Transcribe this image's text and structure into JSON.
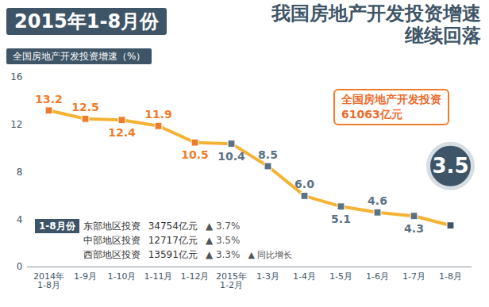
{
  "chart_data": {
    "type": "line",
    "period_label": "2015年1-8月份",
    "title": "我国房地产开发投资增速继续回落",
    "y_label": "全国房地产开发投资增速（%）",
    "categories": [
      "2014年\n1-8月",
      "1-9月",
      "1-10月",
      "1-11月",
      "1-12月",
      "2015年\n1-2月",
      "1-3月",
      "1-4月",
      "1-5月",
      "1-6月",
      "1-7月",
      "1-8月"
    ],
    "values": [
      13.2,
      12.5,
      12.4,
      11.9,
      10.5,
      10.4,
      8.5,
      6.0,
      5.1,
      4.6,
      4.3,
      3.5
    ],
    "value_labels": [
      "13.2",
      "12.5",
      "12.4",
      "11.9",
      "10.5",
      "10.4",
      "8.5",
      "6.0",
      "5.1",
      "4.6",
      "4.3",
      "3.5"
    ],
    "color": "#f5b335",
    "colors": [
      "#f07c2a",
      "#f07c2a",
      "#f07c2a",
      "#f07c2a",
      "#f07c2a",
      "#5b7184",
      "#5b7184",
      "#5b7184",
      "#5b7184",
      "#5b7184",
      "#5b7184",
      "#3e5567"
    ],
    "marker": "square",
    "data_labels": true,
    "grid": false,
    "ylim": [
      0,
      16
    ],
    "yticks": [
      0,
      4,
      8,
      12,
      16
    ],
    "annotation": {
      "label": "全国房地产开发投资",
      "value_label": "61063亿元"
    },
    "regions": {
      "period": "1-8月份",
      "rows": [
        {
          "name": "东部地区投资",
          "investment": "34754亿元",
          "growth": "▲ 3.7%"
        },
        {
          "name": "中部地区投资",
          "investment": "12717亿元",
          "growth": "▲ 3.5%"
        },
        {
          "name": "西部地区投资",
          "investment": "13591亿元",
          "growth": "▲ 3.3%"
        }
      ],
      "note": "▲ 同比增长"
    }
  }
}
